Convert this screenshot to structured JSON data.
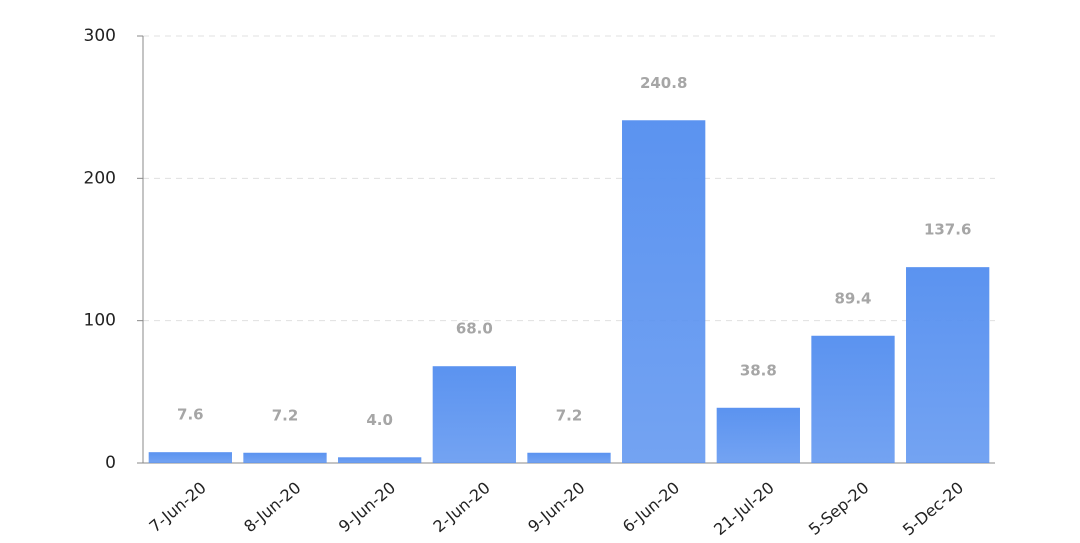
{
  "chart_data": {
    "type": "bar",
    "categories": [
      "7-Jun-20",
      "8-Jun-20",
      "9-Jun-20",
      "2-Jun-20",
      "9-Jun-20",
      "6-Jun-20",
      "21-Jul-20",
      "5-Sep-20",
      "5-Dec-20"
    ],
    "values": [
      7.6,
      7.2,
      4.0,
      68.0,
      7.2,
      240.8,
      38.8,
      89.4,
      137.6
    ],
    "value_labels": [
      "7.6",
      "7.2",
      "4.0",
      "68.0",
      "7.2",
      "240.8",
      "38.8",
      "89.4",
      "137.6"
    ],
    "color": "#5b93f0",
    "ylim": [
      0,
      300
    ],
    "yticks": [
      0,
      100,
      200,
      300
    ],
    "grid": true
  }
}
